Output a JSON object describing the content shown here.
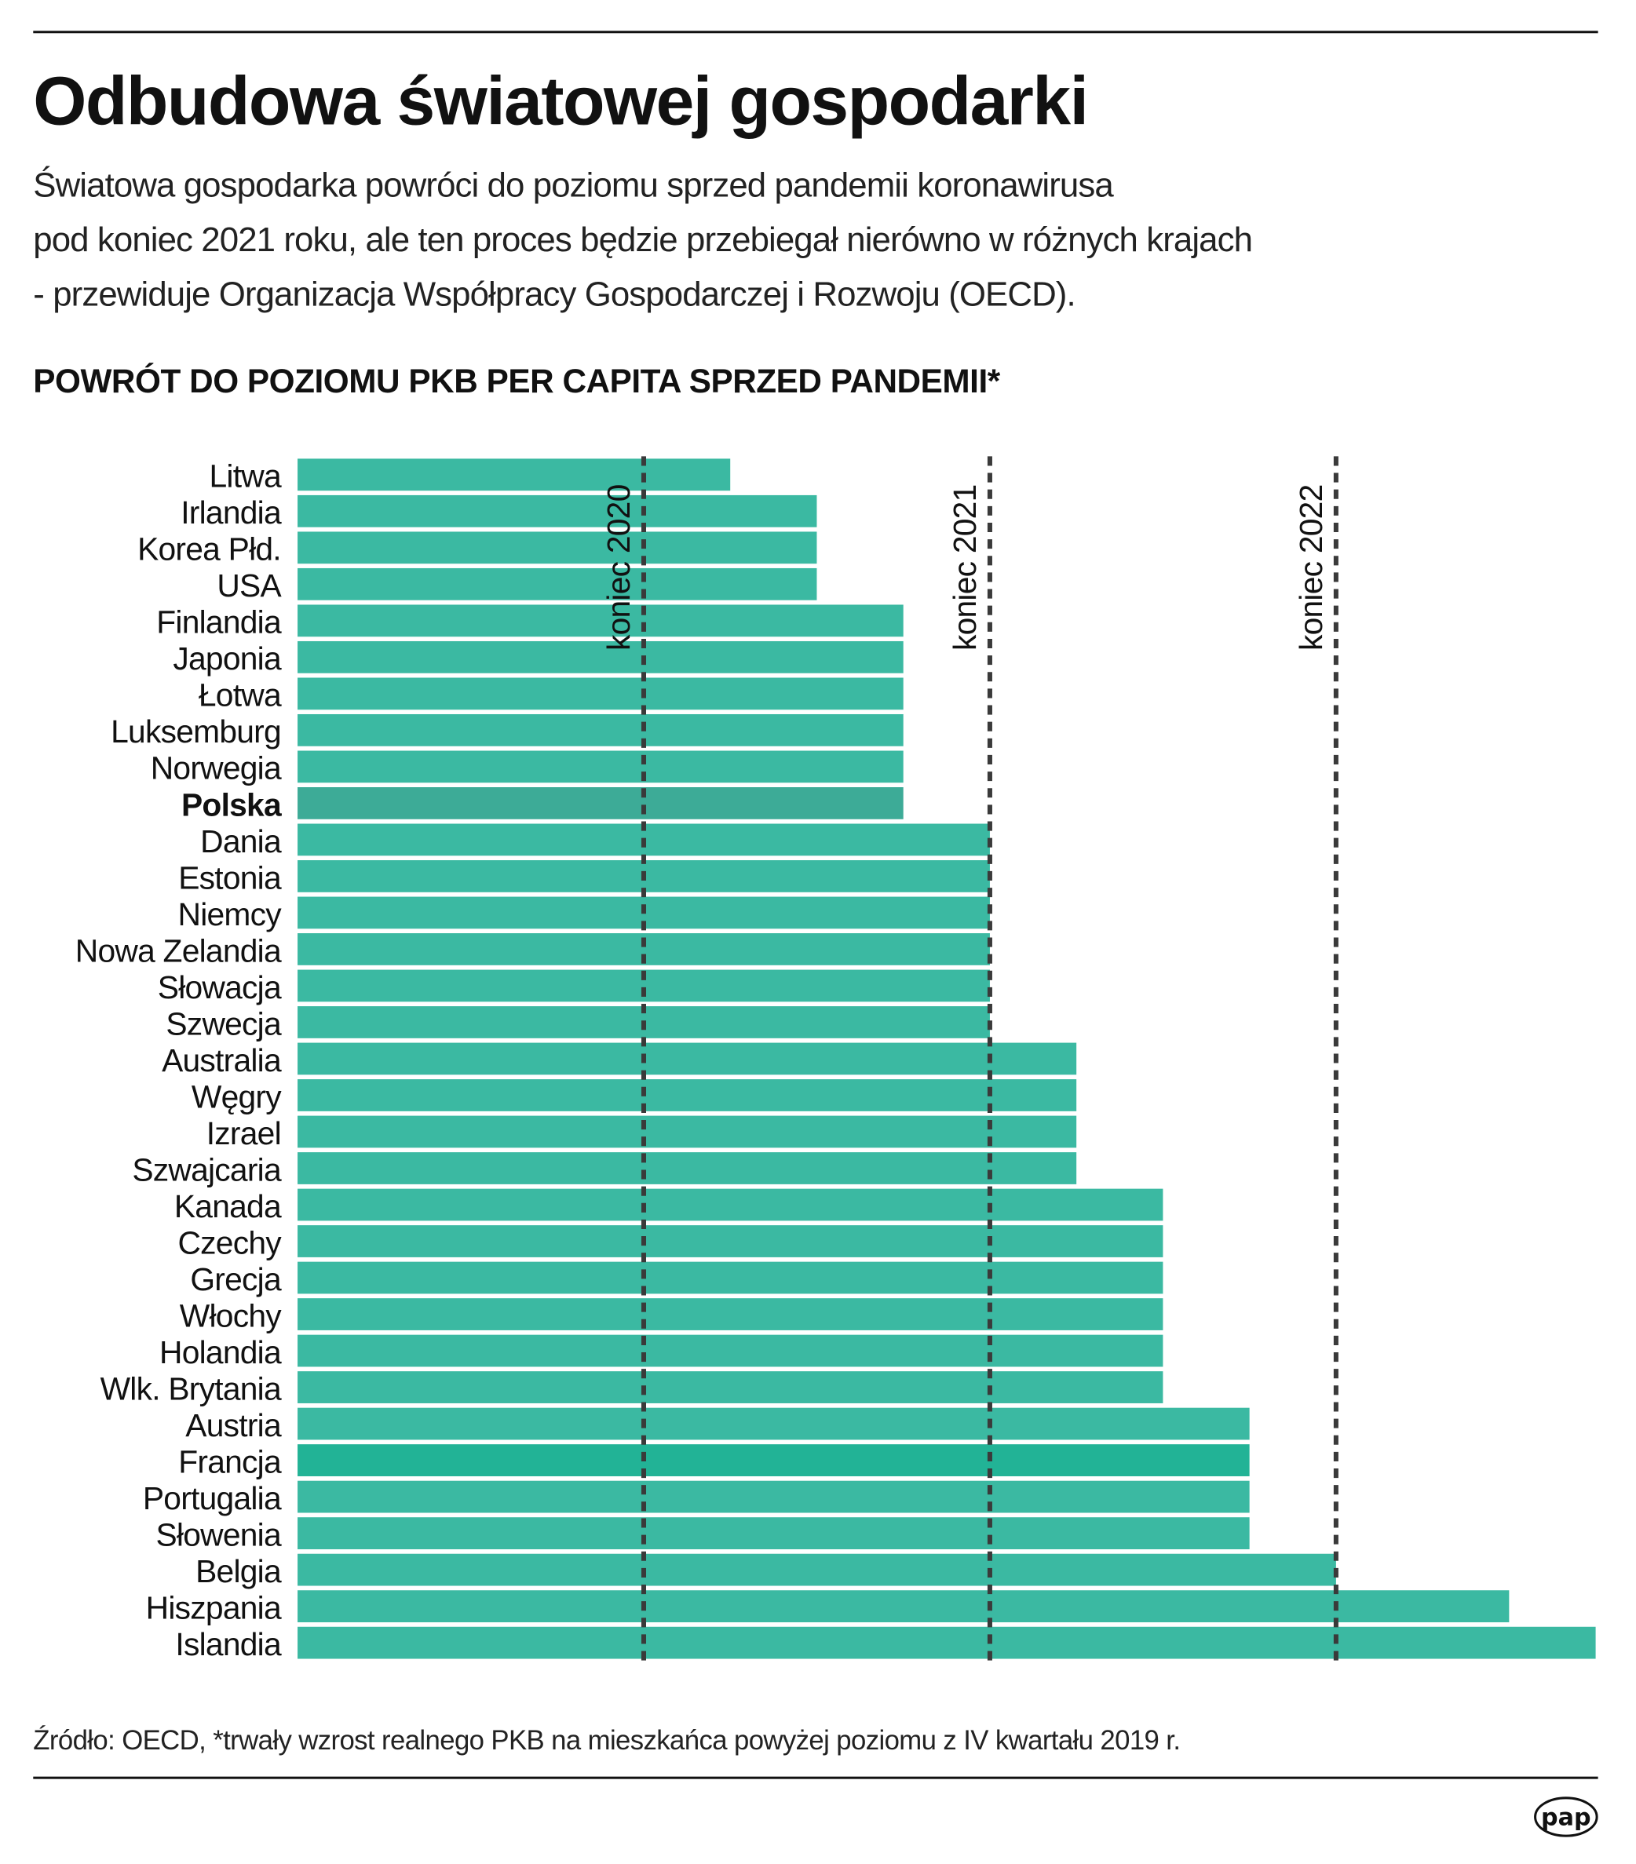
{
  "title": "Odbudowa światowej gospodarki",
  "subtitle_lines": [
    "Światowa gospodarka powróci do poziomu sprzed pandemii koronawirusa",
    "pod koniec 2021 roku, ale ten proces będzie przebiegał nierówno w różnych krajach",
    "- przewiduje Organizacja Współpracy Gospodarczej i Rozwoju (OECD)."
  ],
  "source": "Źródło: OECD, *trwały wzrost realnego PKB na mieszkańca powyżej poziomu z IV kwartału 2019 r.",
  "logo": "pap",
  "chart_data": {
    "type": "bar",
    "orientation": "horizontal",
    "title": "POWRÓT DO POZIOMU PKB PER CAPITA SPRZED PANDEMII*",
    "xlabel": "",
    "ylabel": "",
    "x_unit": "quarters after Q4 2019",
    "xlim": [
      0,
      15
    ],
    "grid": false,
    "reference_lines": [
      {
        "label": "koniec 2020",
        "value": 4
      },
      {
        "label": "koniec 2021",
        "value": 8
      },
      {
        "label": "koniec 2022",
        "value": 12
      }
    ],
    "categories": [
      "Litwa",
      "Irlandia",
      "Korea Płd.",
      "USA",
      "Finlandia",
      "Japonia",
      "Łotwa",
      "Luksemburg",
      "Norwegia",
      "Polska",
      "Dania",
      "Estonia",
      "Niemcy",
      "Nowa Zelandia",
      "Słowacja",
      "Szwecja",
      "Australia",
      "Węgry",
      "Izrael",
      "Szwajcaria",
      "Kanada",
      "Czechy",
      "Grecja",
      "Włochy",
      "Holandia",
      "Wlk. Brytania",
      "Austria",
      "Francja",
      "Portugalia",
      "Słowenia",
      "Belgia",
      "Hiszpania",
      "Islandia"
    ],
    "values": [
      5,
      6,
      6,
      6,
      7,
      7,
      7,
      7,
      7,
      7,
      8,
      8,
      8,
      8,
      8,
      8,
      9,
      9,
      9,
      9,
      10,
      10,
      10,
      10,
      10,
      10,
      11,
      11,
      11,
      11,
      12,
      14,
      15
    ],
    "highlight": "Polska",
    "colors": {
      "bar": "#3bb9a2",
      "highlight": "#3dab97",
      "francja": "#22b396",
      "reference_line": "#3a3a3a"
    }
  }
}
